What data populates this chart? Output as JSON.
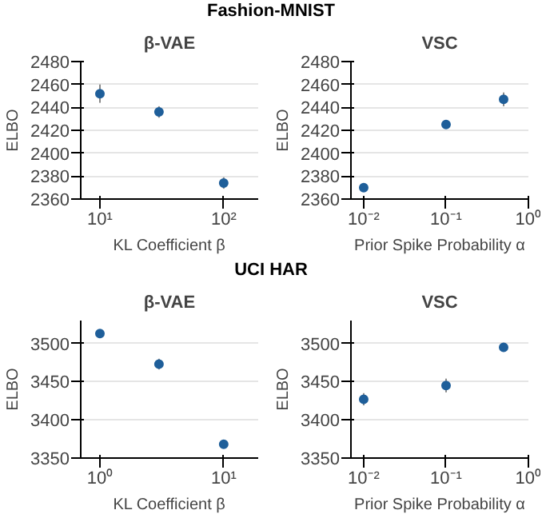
{
  "chart_data": [
    {
      "type": "scatter",
      "annotations": [
        "Fashion-MNIST"
      ],
      "title": "β-VAE",
      "xlabel": "KL Coefficient β",
      "ylabel": "ELBO",
      "log": "x",
      "grid": "y",
      "marker": "circle",
      "x": [
        10,
        30,
        100
      ],
      "series": [
        {
          "color": "#1f5f9a",
          "values": [
            2452,
            2436,
            2374
          ],
          "errors": [
            8,
            5,
            5
          ]
        }
      ],
      "xlim": [
        7,
        190
      ],
      "xticks": [
        {
          "value": 10,
          "label": "10¹"
        },
        {
          "value": 100,
          "label": "10²"
        }
      ],
      "ylim": [
        2360,
        2480
      ],
      "yticks": [
        2360,
        2380,
        2400,
        2420,
        2440,
        2460,
        2480
      ]
    },
    {
      "type": "scatter",
      "title": "VSC",
      "xlabel": "Prior Spike Probability α",
      "ylabel": "ELBO",
      "log": "x",
      "grid": "y",
      "marker": "circle",
      "x": [
        0.01,
        0.1,
        0.5
      ],
      "series": [
        {
          "color": "#1f5f9a",
          "values": [
            2370,
            2425,
            2447
          ],
          "errors": [
            2,
            2,
            6
          ]
        }
      ],
      "xlim": [
        0.007,
        1
      ],
      "xticks": [
        {
          "value": 0.01,
          "label": "10⁻²"
        },
        {
          "value": 0.1,
          "label": "10⁻¹"
        },
        {
          "value": 1,
          "label": "10⁰"
        }
      ],
      "ylim": [
        2360,
        2480
      ],
      "yticks": [
        2360,
        2380,
        2400,
        2420,
        2440,
        2460,
        2480
      ]
    },
    {
      "type": "scatter",
      "annotations": [
        "UCI HAR"
      ],
      "title": "β-VAE",
      "xlabel": "KL Coefficient β",
      "ylabel": "ELBO",
      "log": "x",
      "grid": "y",
      "marker": "circle",
      "x": [
        1,
        3,
        10
      ],
      "series": [
        {
          "color": "#1f5f9a",
          "values": [
            3513,
            3473,
            3368
          ],
          "errors": [
            2,
            7,
            2
          ]
        }
      ],
      "xlim": [
        0.7,
        19
      ],
      "xticks": [
        {
          "value": 1,
          "label": "10⁰"
        },
        {
          "value": 10,
          "label": "10¹"
        }
      ],
      "ylim": [
        3350,
        3530
      ],
      "yticks": [
        3350,
        3400,
        3450,
        3500
      ]
    },
    {
      "type": "scatter",
      "title": "VSC",
      "xlabel": "Prior Spike Probability α",
      "ylabel": "ELBO",
      "log": "x",
      "grid": "y",
      "marker": "circle",
      "x": [
        0.01,
        0.1,
        0.5
      ],
      "series": [
        {
          "color": "#1f5f9a",
          "values": [
            3427,
            3445,
            3495
          ],
          "errors": [
            8,
            9,
            2
          ]
        }
      ],
      "xlim": [
        0.007,
        1
      ],
      "xticks": [
        {
          "value": 0.01,
          "label": "10⁻²"
        },
        {
          "value": 0.1,
          "label": "10⁻¹"
        },
        {
          "value": 1,
          "label": "10⁰"
        }
      ],
      "ylim": [
        3350,
        3530
      ],
      "yticks": [
        3350,
        3400,
        3450,
        3500
      ]
    }
  ]
}
